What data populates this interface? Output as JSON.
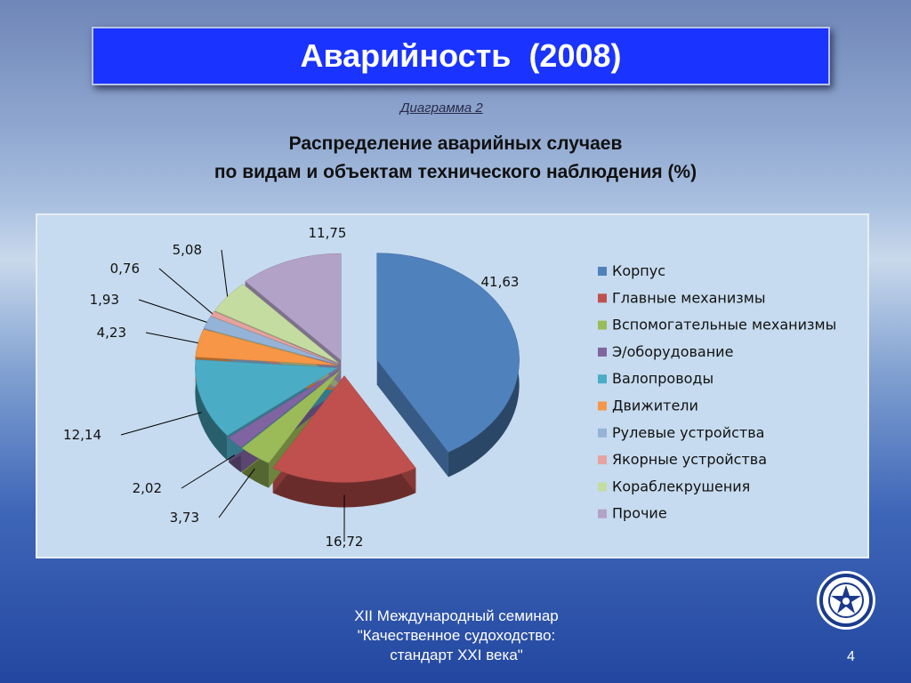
{
  "header": {
    "title": "Аварийность  (2008)"
  },
  "diagram_label": "Диаграмма 2",
  "subtitle_line1": "Распределение аварийных случаев",
  "subtitle_line2": "по видам и объектам технического наблюдения (%)",
  "footer": {
    "line1": "XII Международный семинар",
    "line2": "\"Качественное судоходство:",
    "line3": "стандарт XXI века\""
  },
  "page_number": "4",
  "colors": {
    "title_bar": "#1a33ff",
    "chart_bg": "#c6dbef"
  },
  "chart_data": {
    "type": "pie",
    "title": "",
    "categories": [
      "Корпус",
      "Главные механизмы",
      "Вспомогательные механизмы",
      "Э/оборудование",
      "Валопроводы",
      "Движители",
      "Рулевые устройства",
      "Якорные устройства",
      "Кораблекрушения",
      "Прочие"
    ],
    "values": [
      41.63,
      16.72,
      3.73,
      2.02,
      12.14,
      4.23,
      1.93,
      0.76,
      5.08,
      11.75
    ],
    "value_labels": [
      "41,63",
      "16,72",
      "3,73",
      "2,02",
      "12,14",
      "4,23",
      "1,93",
      "0,76",
      "5,08",
      "11,75"
    ],
    "colors": [
      "#4f81bd",
      "#c0504d",
      "#9bbb59",
      "#8064a2",
      "#4bacc6",
      "#f79646",
      "#95b3d7",
      "#e6a29f",
      "#c4dca0",
      "#b3a2c7"
    ],
    "exploded": true,
    "three_d": true,
    "legend_position": "right"
  }
}
